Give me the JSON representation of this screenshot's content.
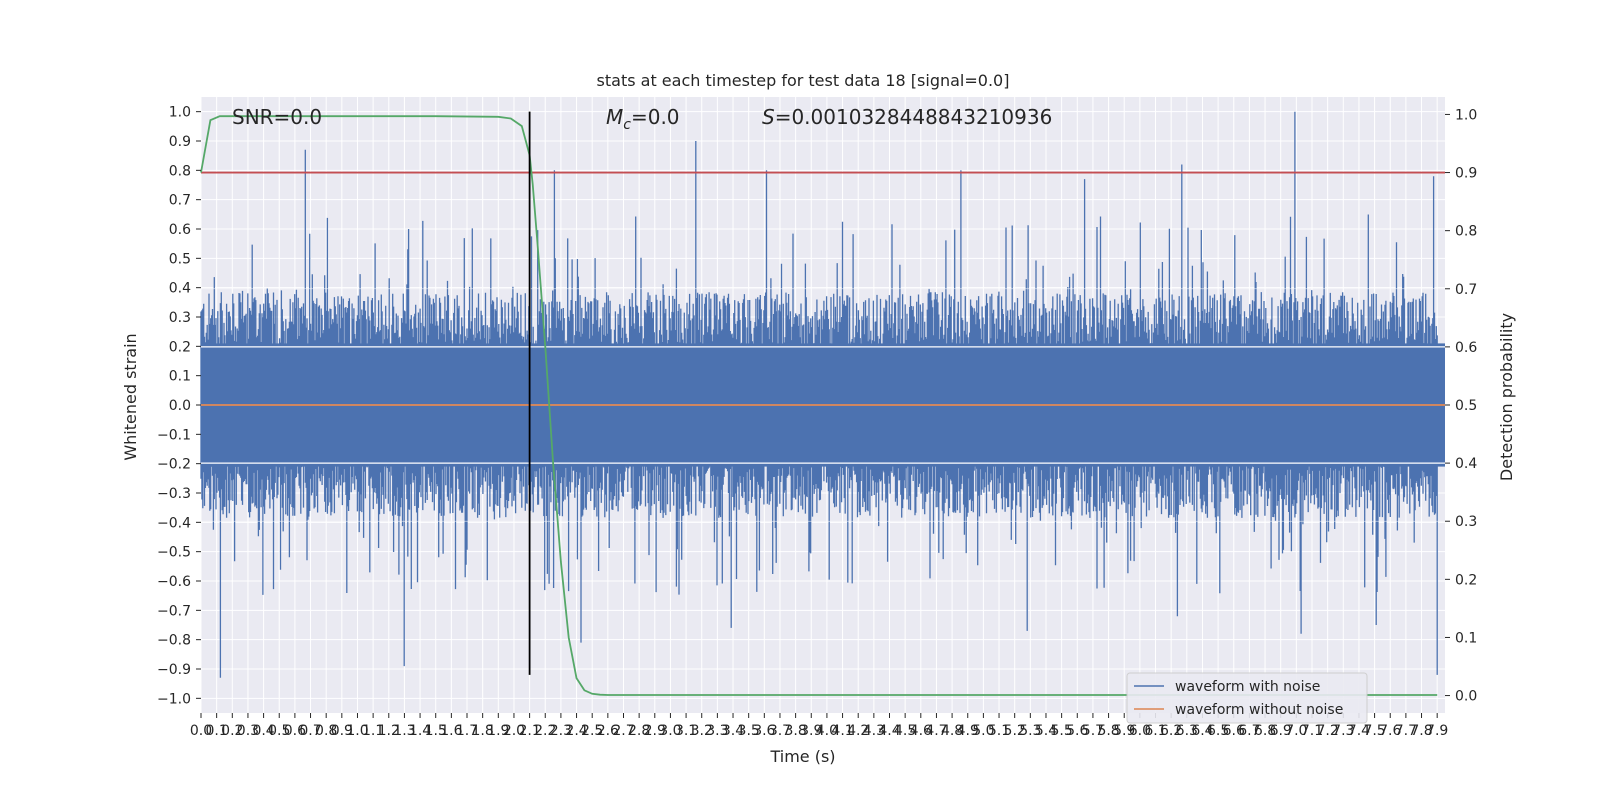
{
  "chart_data": {
    "type": "line",
    "title": "stats at each timestep for test data 18 [signal=0.0]",
    "xlabel": "Time (s)",
    "ylabel": "Whitened strain",
    "y2label": "Detection probability",
    "xlim": [
      0.0,
      7.95
    ],
    "ylim": [
      -1.05,
      1.05
    ],
    "y2lim": [
      -0.03,
      1.03
    ],
    "grid": true,
    "legend_position": "lower right",
    "x_ticks": [
      "0.0",
      "0.1",
      "0.2",
      "0.3",
      "0.4",
      "0.5",
      "0.6",
      "0.7",
      "0.8",
      "0.9",
      "1.0",
      "1.1",
      "1.2",
      "1.3",
      "1.4",
      "1.5",
      "1.6",
      "1.7",
      "1.8",
      "1.9",
      "2.0",
      "2.1",
      "2.2",
      "2.3",
      "2.4",
      "2.5",
      "2.6",
      "2.7",
      "2.8",
      "2.9",
      "3.0",
      "3.1",
      "3.2",
      "3.3",
      "3.4",
      "3.5",
      "3.6",
      "3.7",
      "3.8",
      "3.9",
      "4.0",
      "4.1",
      "4.2",
      "4.3",
      "4.4",
      "4.5",
      "4.6",
      "4.7",
      "4.8",
      "4.9",
      "5.0",
      "5.1",
      "5.2",
      "5.3",
      "5.4",
      "5.5",
      "5.6",
      "5.7",
      "5.8",
      "5.9",
      "6.0",
      "6.1",
      "6.2",
      "6.3",
      "6.4",
      "6.5",
      "6.6",
      "6.7",
      "6.8",
      "6.9",
      "7.0",
      "7.1",
      "7.2",
      "7.3",
      "7.4",
      "7.5",
      "7.6",
      "7.7",
      "7.8",
      "7.9"
    ],
    "y_ticks": [
      "1.0",
      "0.9",
      "0.8",
      "0.7",
      "0.6",
      "0.5",
      "0.4",
      "0.3",
      "0.2",
      "0.1",
      "0.0",
      "−0.1",
      "−0.2",
      "−0.3",
      "−0.4",
      "−0.5",
      "−0.6",
      "−0.7",
      "−0.8",
      "−0.9",
      "−1.0"
    ],
    "y2_ticks": [
      "1.0",
      "0.9",
      "0.8",
      "0.7",
      "0.6",
      "0.5",
      "0.4",
      "0.3",
      "0.2",
      "0.1",
      "0.0"
    ],
    "annotations": {
      "snr": "SNR=0.0",
      "mc_symbol": "M",
      "mc_sub": "c",
      "mc_value": "=0.0",
      "s_symbol": "S",
      "s_value": "=0.0010328448843210936"
    },
    "series": [
      {
        "name": "waveform with noise",
        "color": "#4c72b0",
        "kind": "noise",
        "envelope_typical": 0.35,
        "max": 1.0,
        "min": -0.93
      },
      {
        "name": "waveform without noise",
        "color": "#dd8452",
        "constant": 0.0
      },
      {
        "color": "#55a868",
        "axis": "right",
        "x": [
          0.0,
          0.06,
          0.12,
          0.5,
          1.0,
          1.5,
          1.9,
          1.98,
          2.05,
          2.1,
          2.12,
          2.15,
          2.2,
          2.25,
          2.3,
          2.35,
          2.4,
          2.45,
          2.5,
          2.55,
          2.6,
          2.7,
          3.0,
          4.0,
          5.0,
          6.0,
          7.0,
          7.9
        ],
        "values": [
          0.9,
          0.99,
          0.997,
          0.997,
          0.997,
          0.997,
          0.996,
          0.993,
          0.98,
          0.93,
          0.88,
          0.78,
          0.6,
          0.4,
          0.23,
          0.1,
          0.03,
          0.009,
          0.003,
          0.0015,
          0.001,
          0.001,
          0.001,
          0.001,
          0.001,
          0.001,
          0.001,
          0.001
        ]
      }
    ],
    "threshold": {
      "color": "#c44e52",
      "value": 0.9,
      "axis": "right"
    },
    "vline": {
      "color": "#000000",
      "x": 2.1,
      "ymin": -0.92,
      "ymax": 1.0
    }
  }
}
